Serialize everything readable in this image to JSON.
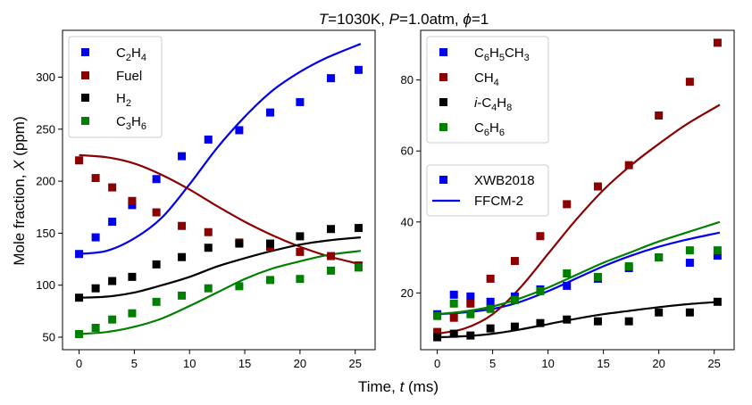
{
  "figure": {
    "title_parts": {
      "T": "T",
      "eq1": "=1030K, ",
      "P": "P",
      "eq2": "=1.0atm, ",
      "phi": "ϕ",
      "eq3": "=1"
    },
    "xlabel_parts": {
      "main": "Time, ",
      "var": "t",
      "unit": " (ms)"
    },
    "ylabel_parts": {
      "main": "Mole fraction, ",
      "var": "X",
      "unit": " (ppm)"
    }
  },
  "chart_data": [
    {
      "type": "scatter",
      "panel": "left",
      "xlim": [
        -1.5,
        26.8
      ],
      "ylim": [
        38,
        345
      ],
      "xticks": [
        0,
        5,
        10,
        15,
        20,
        25
      ],
      "yticks": [
        50,
        100,
        150,
        200,
        250,
        300
      ],
      "legend_position": "top-left",
      "series": [
        {
          "name": "C2H4",
          "label": {
            "main": "C",
            "sub1": "2",
            "mid": "H",
            "sub2": "4"
          },
          "color": "#0000ee",
          "exp": [
            [
              0,
              130
            ],
            [
              1.5,
              146
            ],
            [
              3,
              161
            ],
            [
              4.8,
              177
            ],
            [
              7,
              202
            ],
            [
              9.3,
              224
            ],
            [
              11.7,
              240
            ],
            [
              14.5,
              249
            ],
            [
              17.3,
              266
            ],
            [
              20,
              276
            ],
            [
              22.8,
              299
            ],
            [
              25.3,
              307
            ]
          ],
          "model": [
            [
              0,
              130
            ],
            [
              2.5,
              133
            ],
            [
              5,
              145
            ],
            [
              7.5,
              165
            ],
            [
              10,
              197
            ],
            [
              12.5,
              232
            ],
            [
              15,
              262
            ],
            [
              17.5,
              287
            ],
            [
              20,
              305
            ],
            [
              22.5,
              319
            ],
            [
              25.5,
              332
            ]
          ]
        },
        {
          "name": "Fuel",
          "label": {
            "main": "Fuel",
            "sub1": "",
            "mid": "",
            "sub2": ""
          },
          "color": "#8b0000",
          "exp": [
            [
              0,
              220
            ],
            [
              1.5,
              203
            ],
            [
              3,
              194
            ],
            [
              4.8,
              181
            ],
            [
              7,
              170
            ],
            [
              9.3,
              157
            ],
            [
              11.7,
              151
            ],
            [
              14.5,
              141
            ],
            [
              17.3,
              137
            ],
            [
              20,
              132
            ],
            [
              22.8,
              128
            ],
            [
              25.3,
              119
            ]
          ],
          "model": [
            [
              0,
              225
            ],
            [
              2.5,
              223
            ],
            [
              5,
              217
            ],
            [
              7.5,
              206
            ],
            [
              10,
              192
            ],
            [
              12.5,
              176
            ],
            [
              15,
              161
            ],
            [
              17.5,
              148
            ],
            [
              20,
              137
            ],
            [
              22.5,
              128
            ],
            [
              25.5,
              120
            ]
          ]
        },
        {
          "name": "H2",
          "label": {
            "main": "H",
            "sub1": "2",
            "mid": "",
            "sub2": ""
          },
          "color": "#000000",
          "exp": [
            [
              0,
              88
            ],
            [
              1.5,
              97
            ],
            [
              3,
              104
            ],
            [
              4.8,
              108
            ],
            [
              7,
              120
            ],
            [
              9.3,
              127
            ],
            [
              11.7,
              136
            ],
            [
              14.5,
              140
            ],
            [
              17.3,
              140
            ],
            [
              20,
              147
            ],
            [
              22.8,
              154
            ],
            [
              25.3,
              155
            ]
          ],
          "model": [
            [
              0,
              88
            ],
            [
              2.5,
              89
            ],
            [
              5,
              93
            ],
            [
              7.5,
              100
            ],
            [
              10,
              108
            ],
            [
              12.5,
              118
            ],
            [
              15,
              126
            ],
            [
              17.5,
              133
            ],
            [
              20,
              139
            ],
            [
              22.5,
              143
            ],
            [
              25.5,
              146
            ]
          ]
        },
        {
          "name": "C3H6",
          "label": {
            "main": "C",
            "sub1": "3",
            "mid": "H",
            "sub2": "6"
          },
          "color": "#008000",
          "exp": [
            [
              0,
              53
            ],
            [
              1.5,
              59
            ],
            [
              3,
              67
            ],
            [
              4.8,
              73
            ],
            [
              7,
              84
            ],
            [
              9.3,
              90
            ],
            [
              11.7,
              97
            ],
            [
              14.5,
              99
            ],
            [
              17.3,
              105
            ],
            [
              20,
              106
            ],
            [
              22.8,
              114
            ],
            [
              25.3,
              117
            ]
          ],
          "model": [
            [
              0,
              53
            ],
            [
              2.5,
              55
            ],
            [
              5,
              60
            ],
            [
              7.5,
              68
            ],
            [
              10,
              80
            ],
            [
              12.5,
              93
            ],
            [
              15,
              106
            ],
            [
              17.5,
              116
            ],
            [
              20,
              123
            ],
            [
              22.5,
              129
            ],
            [
              25.5,
              133
            ]
          ]
        }
      ]
    },
    {
      "type": "scatter",
      "panel": "right",
      "xlim": [
        -1.5,
        26.8
      ],
      "ylim": [
        4,
        94
      ],
      "xticks": [
        0,
        5,
        10,
        15,
        20,
        25
      ],
      "yticks": [
        20,
        40,
        60,
        80
      ],
      "legend_position": "top-left",
      "series": [
        {
          "name": "C6H5CH3",
          "label": {
            "pre": "",
            "main": "C",
            "sub1": "6",
            "mid": "H",
            "sub2": "5",
            "tail": "CH",
            "sub3": "3"
          },
          "color": "#0000ee",
          "exp": [
            [
              0,
              14
            ],
            [
              1.5,
              19.5
            ],
            [
              3,
              19
            ],
            [
              4.8,
              17.5
            ],
            [
              7,
              19
            ],
            [
              9.3,
              21
            ],
            [
              11.7,
              22
            ],
            [
              14.5,
              24
            ],
            [
              17.3,
              27
            ],
            [
              20,
              30
            ],
            [
              22.8,
              28.5
            ],
            [
              25.3,
              30.5
            ]
          ],
          "model": [
            [
              0,
              14
            ],
            [
              2.5,
              14.5
            ],
            [
              5,
              15.5
            ],
            [
              7.5,
              17.5
            ],
            [
              10,
              20.5
            ],
            [
              12.5,
              24
            ],
            [
              15,
              27.5
            ],
            [
              17.5,
              30.5
            ],
            [
              20,
              33
            ],
            [
              22.5,
              35
            ],
            [
              25.5,
              37
            ]
          ]
        },
        {
          "name": "CH4",
          "label": {
            "pre": "",
            "main": "CH",
            "sub1": "4",
            "mid": "",
            "sub2": "",
            "tail": "",
            "sub3": ""
          },
          "color": "#8b0000",
          "exp": [
            [
              0,
              9
            ],
            [
              1.5,
              13
            ],
            [
              3,
              17
            ],
            [
              4.8,
              24
            ],
            [
              7,
              29
            ],
            [
              9.3,
              36
            ],
            [
              11.7,
              45
            ],
            [
              14.5,
              50
            ],
            [
              17.3,
              56
            ],
            [
              20,
              70
            ],
            [
              22.8,
              79.5
            ],
            [
              25.3,
              90.5
            ]
          ],
          "model": [
            [
              0,
              8.5
            ],
            [
              2.5,
              10
            ],
            [
              5,
              14
            ],
            [
              7.5,
              21.5
            ],
            [
              10,
              31
            ],
            [
              12.5,
              40.5
            ],
            [
              15,
              49
            ],
            [
              17.5,
              56
            ],
            [
              20,
              62
            ],
            [
              22.5,
              67.5
            ],
            [
              25.5,
              73
            ]
          ]
        },
        {
          "name": "i-C4H8",
          "label": {
            "pre": "i",
            "main": "-C",
            "sub1": "4",
            "mid": "H",
            "sub2": "8",
            "tail": "",
            "sub3": ""
          },
          "color": "#000000",
          "exp": [
            [
              0,
              7.5
            ],
            [
              1.5,
              8.5
            ],
            [
              3,
              8
            ],
            [
              4.8,
              10
            ],
            [
              7,
              10.5
            ],
            [
              9.3,
              11.5
            ],
            [
              11.7,
              12.5
            ],
            [
              14.5,
              12
            ],
            [
              17.3,
              12
            ],
            [
              20,
              14.5
            ],
            [
              22.8,
              14.5
            ],
            [
              25.3,
              17.5
            ]
          ],
          "model": [
            [
              0,
              7.5
            ],
            [
              2.5,
              7.8
            ],
            [
              5,
              8.5
            ],
            [
              7.5,
              9.7
            ],
            [
              10,
              11.2
            ],
            [
              12.5,
              12.7
            ],
            [
              15,
              14
            ],
            [
              17.5,
              15
            ],
            [
              20,
              16
            ],
            [
              22.5,
              16.8
            ],
            [
              25.5,
              17.5
            ]
          ]
        },
        {
          "name": "C6H6",
          "label": {
            "pre": "",
            "main": "C",
            "sub1": "6",
            "mid": "H",
            "sub2": "6",
            "tail": "",
            "sub3": ""
          },
          "color": "#008000",
          "exp": [
            [
              0,
              13.5
            ],
            [
              1.5,
              17
            ],
            [
              3,
              14
            ],
            [
              4.8,
              15.5
            ],
            [
              7,
              18
            ],
            [
              9.3,
              20.5
            ],
            [
              11.7,
              25.5
            ],
            [
              14.5,
              24.5
            ],
            [
              17.3,
              27.5
            ],
            [
              20,
              30
            ],
            [
              22.8,
              32
            ],
            [
              25.3,
              32
            ]
          ],
          "model": [
            [
              0,
              14
            ],
            [
              2.5,
              14.8
            ],
            [
              5,
              16.2
            ],
            [
              7.5,
              18.5
            ],
            [
              10,
              21.5
            ],
            [
              12.5,
              25
            ],
            [
              15,
              28.5
            ],
            [
              17.5,
              31.5
            ],
            [
              20,
              34.5
            ],
            [
              22.5,
              37
            ],
            [
              25.5,
              40
            ]
          ]
        }
      ]
    }
  ],
  "style_legend": {
    "exp_label": "XWB2018",
    "model_label": "FFCM-2",
    "color": "#0000ee"
  }
}
